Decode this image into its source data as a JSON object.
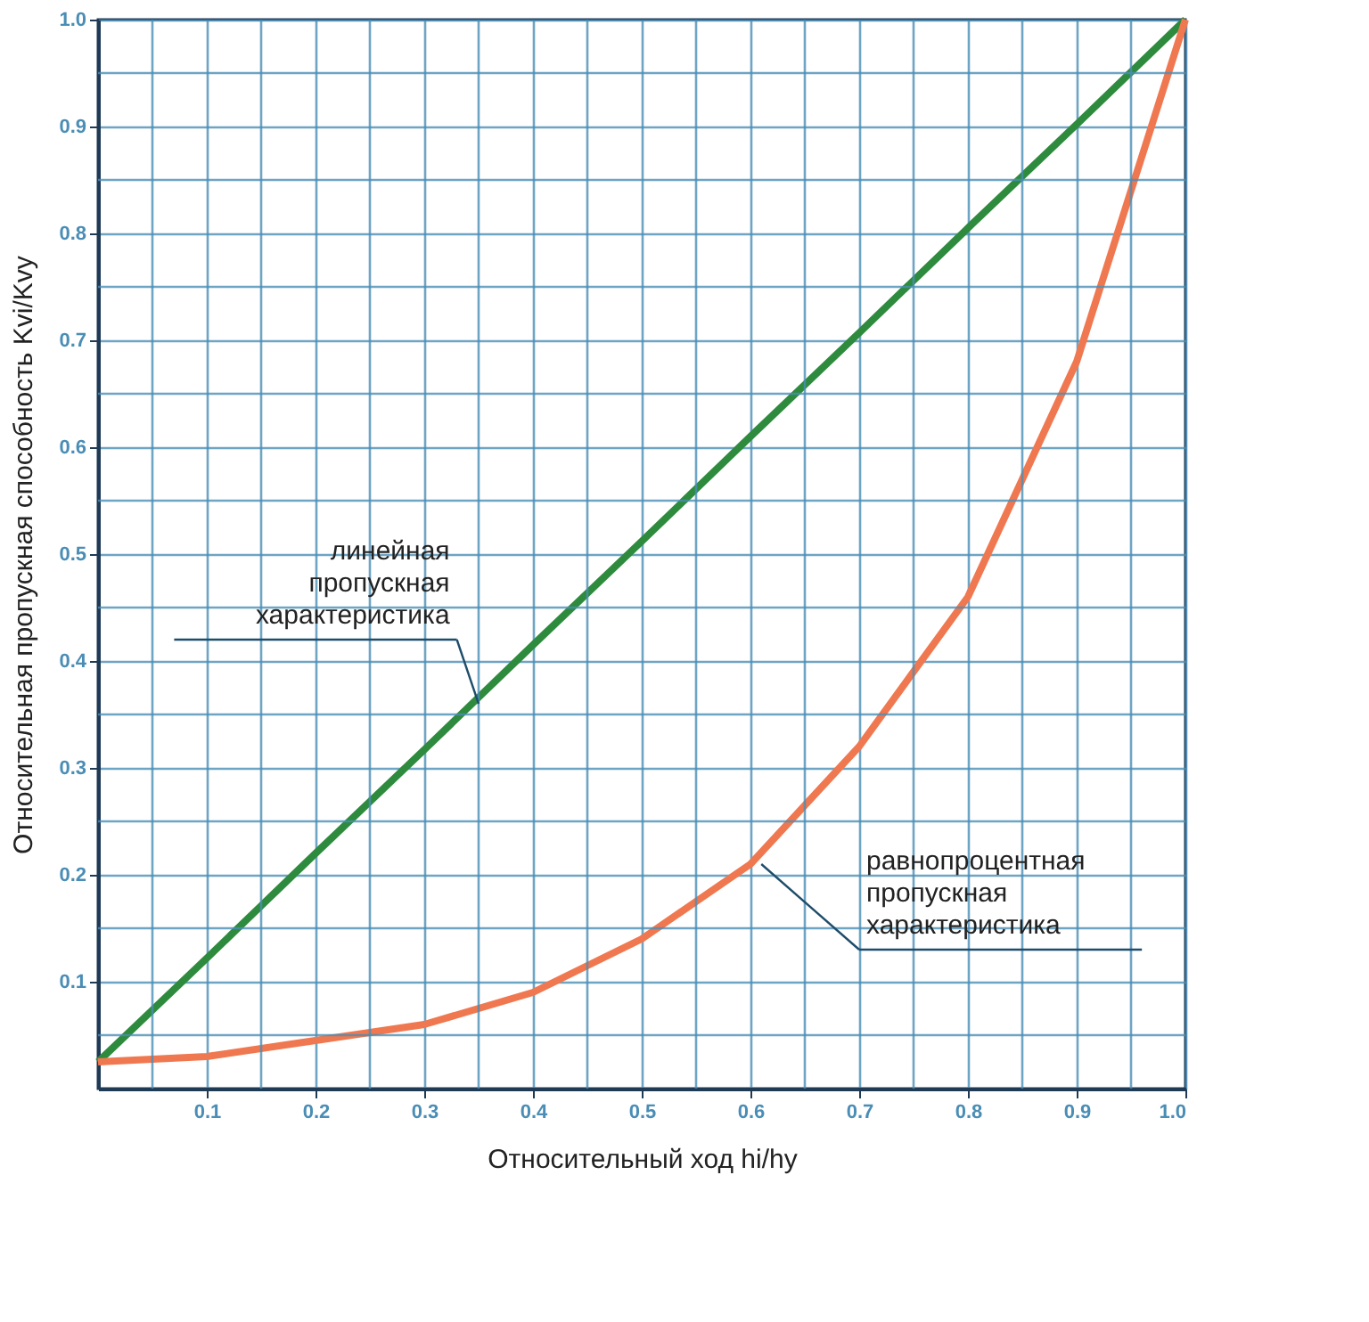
{
  "chart_data": {
    "type": "line",
    "xlabel": "Относительный ход hi/hy",
    "ylabel": "Относительная пропускная способность Kvi/Kvy",
    "x": [
      0,
      0.1,
      0.2,
      0.3,
      0.4,
      0.5,
      0.6,
      0.7,
      0.8,
      0.9,
      1.0
    ],
    "series": [
      {
        "color": "#2e8b3e",
        "values": [
          0.025,
          0.122,
          0.22,
          0.317,
          0.415,
          0.512,
          0.61,
          0.707,
          0.805,
          0.902,
          1.0
        ]
      },
      {
        "color": "#f07850",
        "values": [
          0.025,
          0.03,
          0.045,
          0.06,
          0.09,
          0.14,
          0.21,
          0.32,
          0.46,
          0.68,
          1.0
        ]
      }
    ],
    "xlim": [
      0,
      1
    ],
    "ylim": [
      0,
      1
    ],
    "xticks": [
      {
        "value": 0.05,
        "label": null
      },
      0.1,
      {
        "value": 0.15,
        "label": null
      },
      0.2,
      {
        "value": 0.25,
        "label": null
      },
      0.3,
      {
        "value": 0.35,
        "label": null
      },
      0.4,
      {
        "value": 0.45,
        "label": null
      },
      0.5,
      {
        "value": 0.55,
        "label": null
      },
      0.6,
      {
        "value": 0.65,
        "label": null
      },
      0.7,
      {
        "value": 0.75,
        "label": null
      },
      0.8,
      {
        "value": 0.85,
        "label": null
      },
      0.9,
      {
        "value": 0.95,
        "label": null
      },
      {
        "value": 1.0,
        "label": "1.0"
      }
    ],
    "yticks": [
      {
        "value": 0.05,
        "label": null
      },
      0.1,
      {
        "value": 0.15,
        "label": null
      },
      0.2,
      {
        "value": 0.25,
        "label": null
      },
      0.3,
      {
        "value": 0.35,
        "label": null
      },
      0.4,
      {
        "value": 0.45,
        "label": null
      },
      0.5,
      {
        "value": 0.55,
        "label": null
      },
      0.6,
      {
        "value": 0.65,
        "label": null
      },
      0.7,
      {
        "value": 0.75,
        "label": null
      },
      0.8,
      {
        "value": 0.85,
        "label": null
      },
      0.9,
      {
        "value": 0.95,
        "label": null
      },
      {
        "value": 1.0,
        "label": "1.0"
      }
    ],
    "grid": true,
    "legend": false,
    "line_style": "solid",
    "marker": "none",
    "annotations": [
      {
        "text": "линейная\nпропускная\nхарактеристика",
        "x": 0.35,
        "y": 0.36
      },
      {
        "text": "равнопроцентная\nпропускная\nхарактеристика",
        "x": 0.61,
        "y": 0.21
      }
    ]
  }
}
